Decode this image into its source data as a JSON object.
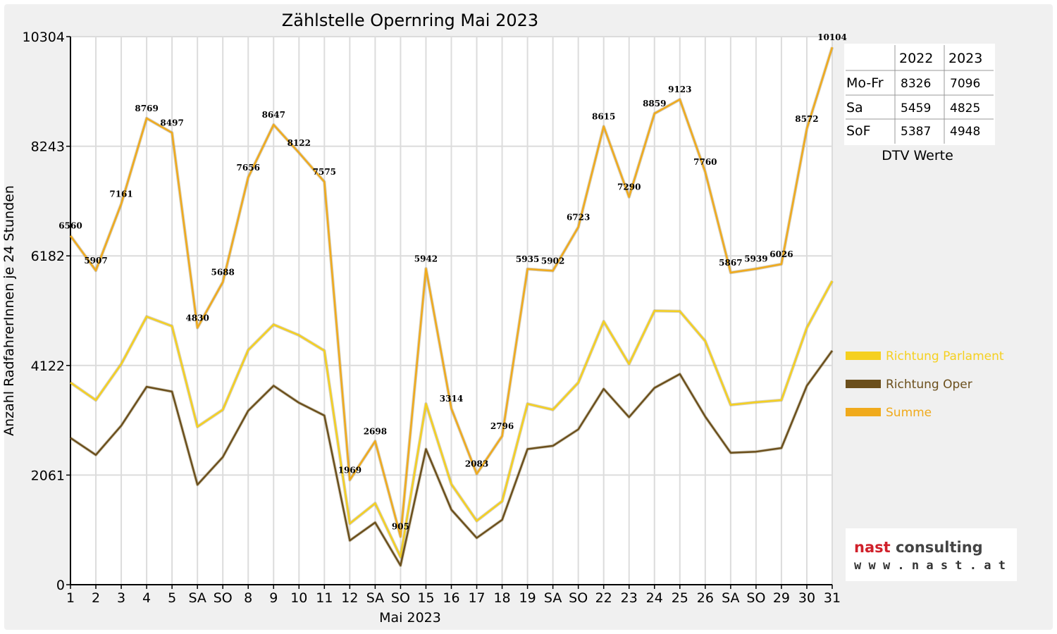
{
  "chart_data": {
    "type": "line",
    "title": "Zählstelle Opernring Mai 2023",
    "xlabel": "Mai 2023",
    "ylabel": "Anzahl RadfahrerInnen je 24 Stunden",
    "ylim": [
      0,
      10304
    ],
    "yticks": [
      "0",
      "2061",
      "4122",
      "6182",
      "8243",
      "10304"
    ],
    "grid": true,
    "legend_position": "right",
    "categories": [
      "1",
      "2",
      "3",
      "4",
      "5",
      "SA",
      "SO",
      "8",
      "9",
      "10",
      "11",
      "12",
      "SA",
      "SO",
      "15",
      "16",
      "17",
      "18",
      "19",
      "SA",
      "SO",
      "22",
      "23",
      "24",
      "25",
      "26",
      "SA",
      "SO",
      "29",
      "30",
      "31"
    ],
    "red_categories": [
      0,
      6,
      13,
      17,
      20,
      27,
      28
    ],
    "series": [
      {
        "name": "Richtung Parlament",
        "color": "#f5d020",
        "values": [
          3800,
          3470,
          4150,
          5040,
          4860,
          2970,
          3290,
          4410,
          4890,
          4690,
          4400,
          1150,
          1530,
          520,
          3400,
          1890,
          1200,
          1570,
          3400,
          3290,
          3800,
          4950,
          4150,
          5150,
          5140,
          4580,
          3380,
          3430,
          3470,
          4830,
          5710
        ]
      },
      {
        "name": "Richtung Oper",
        "color": "#6b4f1c",
        "values": [
          2760,
          2440,
          2990,
          3720,
          3630,
          1880,
          2400,
          3270,
          3740,
          3420,
          3180,
          830,
          1170,
          360,
          2550,
          1410,
          880,
          1220,
          2550,
          2610,
          2920,
          3680,
          3150,
          3700,
          3960,
          3160,
          2480,
          2500,
          2570,
          3740,
          4400
        ]
      },
      {
        "name": "Summe",
        "color": "#f0aa1c",
        "values": [
          6560,
          5907,
          7161,
          8769,
          8497,
          4830,
          5688,
          7656,
          8647,
          8122,
          7575,
          1969,
          2698,
          905,
          5942,
          3314,
          2083,
          2796,
          5935,
          5902,
          6723,
          8615,
          7290,
          8859,
          9123,
          7760,
          5867,
          5939,
          6026,
          8572,
          10104
        ]
      }
    ],
    "data_labels": [
      "6560",
      "5907",
      "7161",
      "8769",
      "8497",
      "4830",
      "5688",
      "7656",
      "8647",
      "8122",
      "7575",
      "1969",
      "2698",
      "905",
      "5942",
      "3314",
      "2083",
      "2796",
      "5935",
      "5902",
      "6723",
      "8615",
      "7290",
      "8859",
      "9123",
      "7760",
      "5867",
      "5939",
      "6026",
      "8572",
      "10104"
    ]
  },
  "dtv_table": {
    "caption": "DTV Werte",
    "headers": [
      "2022",
      "2023"
    ],
    "rows": [
      {
        "label": "Mo-Fr",
        "v2022": "8326",
        "v2023": "7096"
      },
      {
        "label": "Sa",
        "v2022": "5459",
        "v2023": "4825"
      },
      {
        "label": "SoF",
        "v2022": "5387",
        "v2023": "4948"
      }
    ]
  },
  "logo": {
    "part1": "nast",
    "part2": " consulting",
    "url": "w w w . n a s t . a t",
    "color1": "#d0202a",
    "color2": "#444444"
  }
}
